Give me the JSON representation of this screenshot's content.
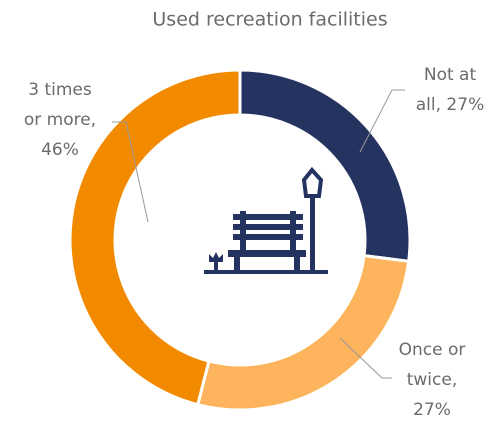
{
  "chart_data": {
    "type": "pie",
    "donut": true,
    "title": "Used recreation facilities",
    "values": [
      27,
      27,
      46
    ],
    "value_labels": [
      [
        "Not at",
        "all, 27%"
      ],
      [
        "Once or",
        "twice,",
        "27%"
      ],
      [
        "3 times",
        "or more,",
        "46%"
      ]
    ],
    "colors": [
      "#253361",
      "#fdb45c",
      "#f28a00"
    ]
  }
}
